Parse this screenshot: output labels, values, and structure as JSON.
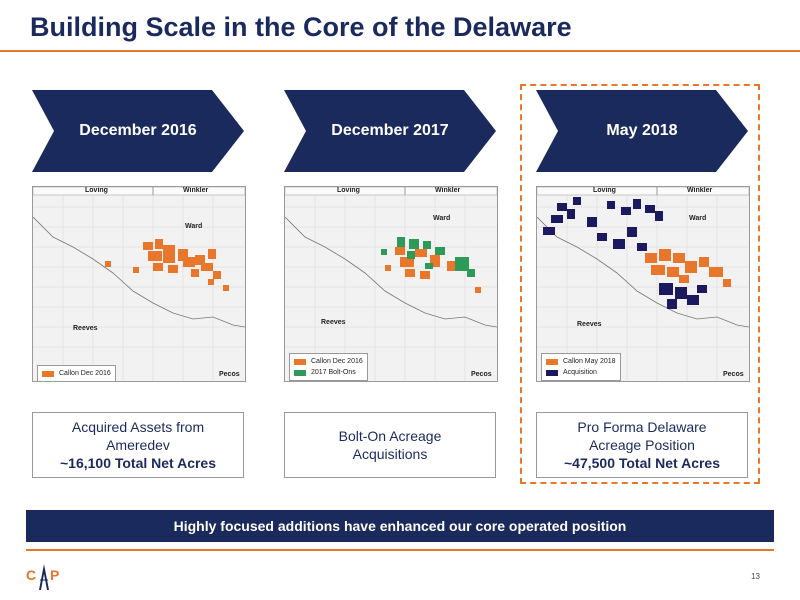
{
  "title": "Building Scale in the Core of the Delaware",
  "columns": [
    {
      "header": "December 2016",
      "counties": {
        "c1": "Loving",
        "c2": "Winkler",
        "c3": "Ward",
        "c4": "Reeves",
        "c5": "Pecos"
      },
      "legend": [
        {
          "label": "Callon Dec 2016",
          "color": "#e8762b"
        }
      ],
      "desc_line1": "Acquired Assets from",
      "desc_line2": "Ameredev",
      "desc_bold": "~16,100 Total Net Acres"
    },
    {
      "header": "December 2017",
      "counties": {
        "c1": "Loving",
        "c2": "Winkler",
        "c3": "Ward",
        "c4": "Reeves",
        "c5": "Pecos"
      },
      "legend": [
        {
          "label": "Callon Dec 2016",
          "color": "#e8762b"
        },
        {
          "label": "2017 Bolt-Ons",
          "color": "#2e9a5a"
        }
      ],
      "desc_line1": "Bolt-On Acreage",
      "desc_line2": "Acquisitions",
      "desc_bold": ""
    },
    {
      "header": "May 2018",
      "counties": {
        "c1": "Loving",
        "c2": "Winkler",
        "c3": "Ward",
        "c4": "Reeves",
        "c5": "Pecos"
      },
      "legend": [
        {
          "label": "Callon May 2018",
          "color": "#e8762b"
        },
        {
          "label": "Acquisition",
          "color": "#1b1a5e"
        }
      ],
      "desc_line1": "Pro Forma Delaware",
      "desc_line2": "Acreage Position",
      "desc_bold": "~47,500 Total Net Acres"
    }
  ],
  "banner": "Highly focused additions have enhanced our core operated position",
  "page_number": "13",
  "logo_text": "CAP",
  "colors": {
    "navy": "#1b2a5c",
    "orange": "#e8762b",
    "green": "#2e9a5a",
    "dark_navy": "#1b1a5e"
  }
}
